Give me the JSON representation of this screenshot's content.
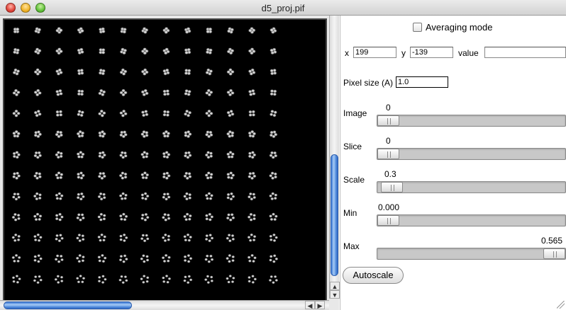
{
  "window": {
    "title": "d5_proj.pif"
  },
  "image_view": {
    "columns": 13,
    "rows": 13,
    "background": "#000000",
    "particle_color": "#d0d0d0"
  },
  "controls": {
    "averaging_mode": {
      "label": "Averaging mode",
      "checked": false
    },
    "coords": {
      "x_label": "x",
      "x_value": "199",
      "y_label": "y",
      "y_value": "-139",
      "value_label": "value",
      "value_value": ""
    },
    "pixel_size": {
      "label": "Pixel size (A)",
      "value": "1.0"
    },
    "sliders": {
      "image": {
        "label": "Image",
        "value": "0",
        "fraction": 0.0
      },
      "slice": {
        "label": "Slice",
        "value": "0",
        "fraction": 0.0
      },
      "scale": {
        "label": "Scale",
        "value": "0.3",
        "fraction": 0.02
      },
      "min": {
        "label": "Min",
        "value": "0.000",
        "fraction": 0.0
      },
      "max": {
        "label": "Max",
        "value": "0.565",
        "fraction": 1.0
      }
    },
    "autoscale_label": "Autoscale"
  }
}
